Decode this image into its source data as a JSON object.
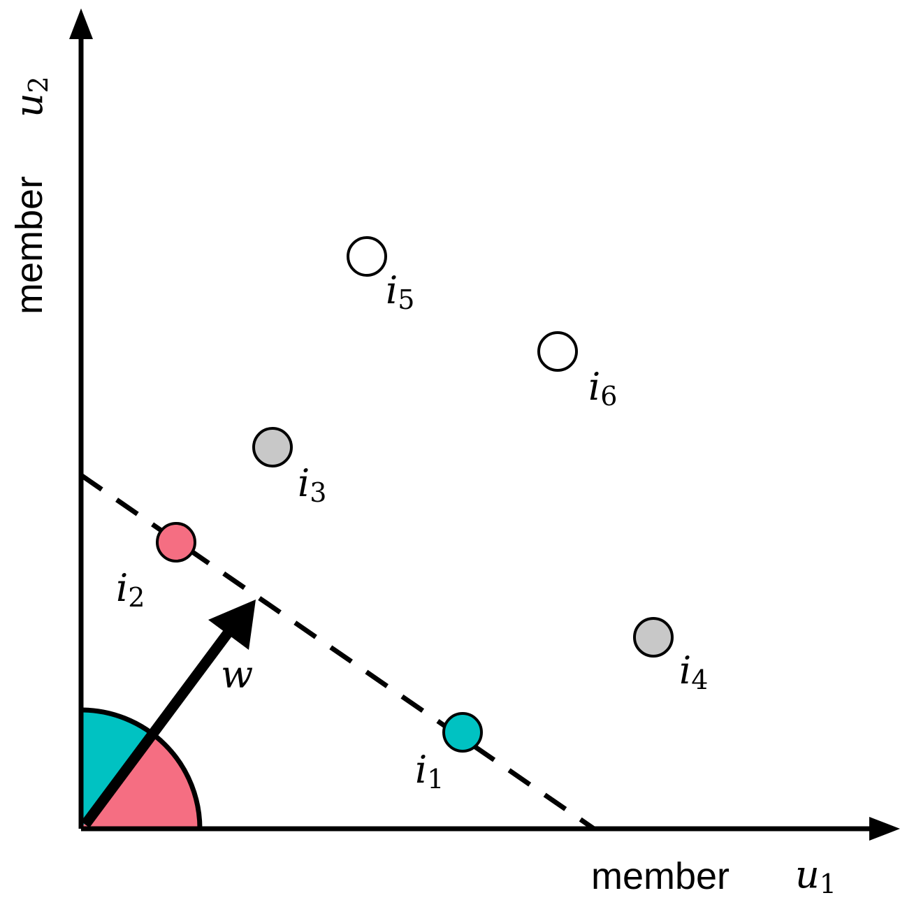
{
  "axes": {
    "x_label_word": "member",
    "x_label_var": "u",
    "x_label_sub": "1",
    "y_label_word": "member",
    "y_label_var": "u",
    "y_label_sub": "2"
  },
  "vector": {
    "label": "w"
  },
  "items": [
    {
      "var": "i",
      "sub": "1",
      "fill": "#00c2c2"
    },
    {
      "var": "i",
      "sub": "2",
      "fill": "#f56e82"
    },
    {
      "var": "i",
      "sub": "3",
      "fill": "#c8c8c8"
    },
    {
      "var": "i",
      "sub": "4",
      "fill": "#c8c8c8"
    },
    {
      "var": "i",
      "sub": "5",
      "fill": "#ffffff"
    },
    {
      "var": "i",
      "sub": "6",
      "fill": "#ffffff"
    }
  ],
  "colors": {
    "teal": "#00c2c2",
    "pink": "#f56e82",
    "gray": "#c8c8c8",
    "stroke": "#000000"
  }
}
